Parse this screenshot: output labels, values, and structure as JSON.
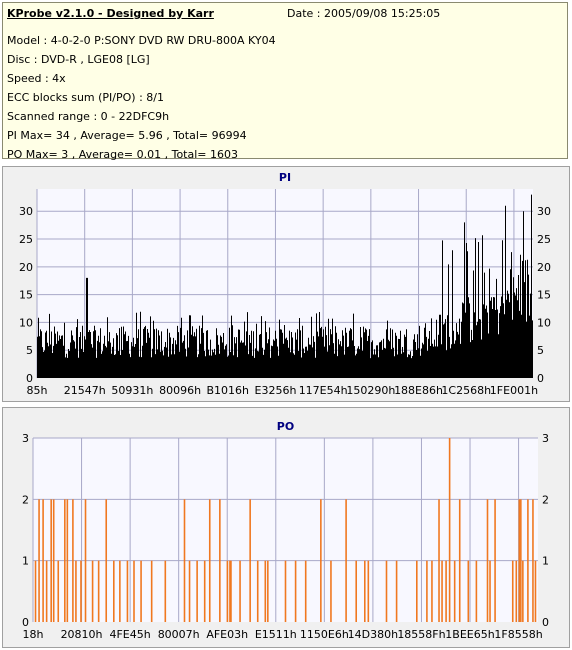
{
  "header": {
    "title": "KProbe v2.1.0 - Designed by Karr",
    "date": "Date : 2005/09/08 15:25:05",
    "lines": [
      "Model : 4-0-2-0 P:SONY    DVD RW DRU-800A  KY04",
      "Disc : DVD-R , LGE08 [LG]",
      "Speed : 4x",
      "ECC blocks sum (PI/PO) : 8/1",
      "Scanned range : 0 - 22DFC9h",
      "PI Max= 34 , Average= 5.96 , Total= 96994",
      "PO Max= 3 , Average= 0.01 , Total= 1603"
    ]
  },
  "colors": {
    "pi_bars": "#000000",
    "po_bars": "#f07820",
    "chart_bg": "#f8f8ff",
    "grid": "#a8a8c8",
    "title": "#000080"
  },
  "chart_data": [
    {
      "type": "bar",
      "title": "PI",
      "ylim": [
        0,
        34
      ],
      "yticks": [
        0,
        5,
        10,
        15,
        20,
        25,
        30
      ],
      "xticklabels": [
        "85h",
        "21547h",
        "50931h",
        "80096h",
        "B1016h",
        "E3256h",
        "117E54h",
        "150290h",
        "188E86h",
        "1C2568h",
        "1FE001h"
      ],
      "grid": true,
      "segments": [
        {
          "x_from": 0.0,
          "x_to": 0.78,
          "avg": 6.5,
          "max": 12
        },
        {
          "x_from": 0.78,
          "x_to": 1.0,
          "avg": 11.5,
          "max": 26
        }
      ],
      "peaks": [
        {
          "x": 0.1,
          "value": 18
        },
        {
          "x": 0.861,
          "value": 28
        },
        {
          "x": 0.944,
          "value": 31
        },
        {
          "x": 0.98,
          "value": 30
        },
        {
          "x": 0.996,
          "value": 33
        }
      ],
      "max": 34,
      "average": 5.96
    },
    {
      "type": "bar",
      "title": "PO",
      "ylim": [
        0,
        3
      ],
      "yticks": [
        0,
        1,
        2,
        3
      ],
      "xticklabels": [
        "18h",
        "20810h",
        "4FE45h",
        "80007h",
        "AFE03h",
        "E1511h",
        "1150E6h",
        "14D380h",
        "18558Fh",
        "1BEE65h",
        "1F8558h"
      ],
      "grid": true,
      "max": 3,
      "average": 0.01,
      "spikes": [
        {
          "x": 0.005,
          "value": 1
        },
        {
          "x": 0.012,
          "value": 2
        },
        {
          "x": 0.02,
          "value": 2
        },
        {
          "x": 0.027,
          "value": 1
        },
        {
          "x": 0.036,
          "value": 2
        },
        {
          "x": 0.041,
          "value": 2
        },
        {
          "x": 0.05,
          "value": 1
        },
        {
          "x": 0.063,
          "value": 2
        },
        {
          "x": 0.068,
          "value": 2
        },
        {
          "x": 0.079,
          "value": 2
        },
        {
          "x": 0.085,
          "value": 1
        },
        {
          "x": 0.095,
          "value": 1
        },
        {
          "x": 0.104,
          "value": 2
        },
        {
          "x": 0.118,
          "value": 1
        },
        {
          "x": 0.13,
          "value": 1
        },
        {
          "x": 0.145,
          "value": 2
        },
        {
          "x": 0.16,
          "value": 1
        },
        {
          "x": 0.172,
          "value": 1
        },
        {
          "x": 0.187,
          "value": 1
        },
        {
          "x": 0.2,
          "value": 1
        },
        {
          "x": 0.214,
          "value": 1
        },
        {
          "x": 0.235,
          "value": 1
        },
        {
          "x": 0.262,
          "value": 1
        },
        {
          "x": 0.3,
          "value": 2
        },
        {
          "x": 0.31,
          "value": 1
        },
        {
          "x": 0.325,
          "value": 1
        },
        {
          "x": 0.34,
          "value": 1
        },
        {
          "x": 0.35,
          "value": 2
        },
        {
          "x": 0.37,
          "value": 2
        },
        {
          "x": 0.385,
          "value": 1
        },
        {
          "x": 0.39,
          "value": 1
        },
        {
          "x": 0.392,
          "value": 1
        },
        {
          "x": 0.41,
          "value": 1
        },
        {
          "x": 0.43,
          "value": 2
        },
        {
          "x": 0.445,
          "value": 1
        },
        {
          "x": 0.46,
          "value": 1
        },
        {
          "x": 0.465,
          "value": 1
        },
        {
          "x": 0.5,
          "value": 1
        },
        {
          "x": 0.52,
          "value": 1
        },
        {
          "x": 0.54,
          "value": 1
        },
        {
          "x": 0.57,
          "value": 2
        },
        {
          "x": 0.59,
          "value": 1
        },
        {
          "x": 0.62,
          "value": 2
        },
        {
          "x": 0.64,
          "value": 1
        },
        {
          "x": 0.657,
          "value": 1
        },
        {
          "x": 0.664,
          "value": 1
        },
        {
          "x": 0.7,
          "value": 1
        },
        {
          "x": 0.72,
          "value": 1
        },
        {
          "x": 0.76,
          "value": 1
        },
        {
          "x": 0.78,
          "value": 1
        },
        {
          "x": 0.79,
          "value": 1
        },
        {
          "x": 0.804,
          "value": 2
        },
        {
          "x": 0.81,
          "value": 1
        },
        {
          "x": 0.818,
          "value": 1
        },
        {
          "x": 0.825,
          "value": 3
        },
        {
          "x": 0.835,
          "value": 1
        },
        {
          "x": 0.845,
          "value": 2
        },
        {
          "x": 0.862,
          "value": 1
        },
        {
          "x": 0.878,
          "value": 1
        },
        {
          "x": 0.9,
          "value": 2
        },
        {
          "x": 0.905,
          "value": 1
        },
        {
          "x": 0.915,
          "value": 2
        },
        {
          "x": 0.95,
          "value": 1
        },
        {
          "x": 0.957,
          "value": 1
        },
        {
          "x": 0.963,
          "value": 2
        },
        {
          "x": 0.966,
          "value": 2
        },
        {
          "x": 0.97,
          "value": 1
        },
        {
          "x": 0.98,
          "value": 2
        },
        {
          "x": 0.99,
          "value": 2
        },
        {
          "x": 0.995,
          "value": 1
        }
      ]
    }
  ]
}
